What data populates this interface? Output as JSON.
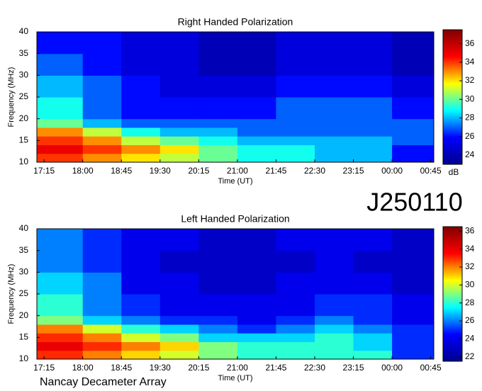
{
  "header": {
    "id": "J250110"
  },
  "footer": "Nancay Decameter Array",
  "chart_data": [
    {
      "type": "heatmap",
      "title": "Right Handed Polarization",
      "xlabel": "Time (UT)",
      "ylabel": "Frequency (MHz)",
      "colorbar_label": "dB",
      "xlim": [
        17.11,
        24.81
      ],
      "ylim": [
        10,
        40
      ],
      "clim": [
        23,
        37.5
      ],
      "colormap": [
        "#00008f",
        "#0000ff",
        "#00ffff",
        "#ffff00",
        "#ff0000",
        "#800000"
      ],
      "xticks": [
        {
          "value": 17.25,
          "label": "17:15"
        },
        {
          "value": 18,
          "label": "18:00"
        },
        {
          "value": 18.75,
          "label": "18:45"
        },
        {
          "value": 19.5,
          "label": "19:30"
        },
        {
          "value": 20.25,
          "label": "20:15"
        },
        {
          "value": 21,
          "label": "21:00"
        },
        {
          "value": 21.75,
          "label": "21:45"
        },
        {
          "value": 22.5,
          "label": "22:30"
        },
        {
          "value": 23.25,
          "label": "23:15"
        },
        {
          "value": 24,
          "label": "00:00"
        },
        {
          "value": 24.75,
          "label": "00:45"
        }
      ],
      "yticks": [
        10,
        15,
        20,
        25,
        30,
        35,
        40
      ],
      "cticks": [
        24,
        26,
        28,
        30,
        32,
        34,
        36
      ],
      "x_bins": [
        17.11,
        18,
        18.75,
        19.5,
        20.25,
        21,
        21.75,
        22.5,
        23.25,
        24,
        24.81
      ],
      "y_bins": [
        10,
        12,
        14,
        16,
        18,
        20,
        25,
        30,
        35,
        40
      ],
      "z": [
        [
          34,
          33,
          32,
          31,
          30,
          29,
          29,
          28,
          28,
          26
        ],
        [
          35,
          34,
          33,
          32,
          30,
          29,
          29,
          28,
          28,
          26
        ],
        [
          34,
          33,
          31,
          30,
          29,
          28,
          28,
          28,
          28,
          27
        ],
        [
          33,
          31,
          29,
          28,
          28,
          27,
          27,
          27,
          27,
          27
        ],
        [
          30,
          28,
          27,
          27,
          27,
          27,
          27,
          27,
          27,
          27
        ],
        [
          29,
          27,
          26,
          26,
          26,
          26,
          27,
          27,
          27,
          26
        ],
        [
          28,
          27,
          26,
          25,
          25,
          25,
          26,
          26,
          26,
          25
        ],
        [
          27,
          26,
          25,
          25,
          24,
          24,
          25,
          25,
          25,
          24
        ],
        [
          26,
          26,
          25,
          25,
          24,
          24,
          25,
          25,
          25,
          24
        ]
      ]
    },
    {
      "type": "heatmap",
      "title": "Left Handed Polarization",
      "xlabel": "Time (UT)",
      "ylabel": "Frequency (MHz)",
      "xlim": [
        17.11,
        24.81
      ],
      "ylim": [
        10,
        40
      ],
      "clim": [
        21.5,
        36.5
      ],
      "colormap": [
        "#00008f",
        "#0000ff",
        "#00ffff",
        "#ffff00",
        "#ff0000",
        "#800000"
      ],
      "xticks": [
        {
          "value": 17.25,
          "label": "17:15"
        },
        {
          "value": 18,
          "label": "18:00"
        },
        {
          "value": 18.75,
          "label": "18:45"
        },
        {
          "value": 19.5,
          "label": "19:30"
        },
        {
          "value": 20.25,
          "label": "20:15"
        },
        {
          "value": 21,
          "label": "21:00"
        },
        {
          "value": 21.75,
          "label": "21:45"
        },
        {
          "value": 22.5,
          "label": "22:30"
        },
        {
          "value": 23.25,
          "label": "23:15"
        },
        {
          "value": 24,
          "label": "00:00"
        },
        {
          "value": 24.75,
          "label": "00:45"
        }
      ],
      "yticks": [
        10,
        15,
        20,
        25,
        30,
        35,
        40
      ],
      "cticks": [
        22,
        24,
        26,
        28,
        30,
        32,
        34,
        36
      ],
      "x_bins": [
        17.11,
        18,
        18.75,
        19.5,
        20.25,
        21,
        21.75,
        22.5,
        23.25,
        24,
        24.81
      ],
      "y_bins": [
        10,
        12,
        14,
        16,
        18,
        20,
        25,
        30,
        35,
        40
      ],
      "z": [
        [
          33,
          32,
          31,
          30,
          29,
          28,
          28,
          28,
          28,
          25
        ],
        [
          34,
          33,
          32,
          31,
          29,
          28,
          28,
          28,
          27,
          25
        ],
        [
          33,
          32,
          30,
          29,
          27,
          27,
          27,
          28,
          27,
          25
        ],
        [
          32,
          30,
          28,
          27,
          26,
          25,
          26,
          27,
          26,
          25
        ],
        [
          29,
          27,
          26,
          25,
          25,
          24,
          25,
          26,
          25,
          24
        ],
        [
          28,
          26,
          25,
          24,
          24,
          24,
          24,
          25,
          25,
          24
        ],
        [
          27,
          26,
          24,
          24,
          23,
          23,
          24,
          24,
          24,
          23
        ],
        [
          26,
          25,
          24,
          23,
          23,
          23,
          23,
          24,
          23,
          23
        ],
        [
          26,
          25,
          24,
          24,
          23,
          23,
          24,
          24,
          24,
          23
        ]
      ]
    }
  ]
}
